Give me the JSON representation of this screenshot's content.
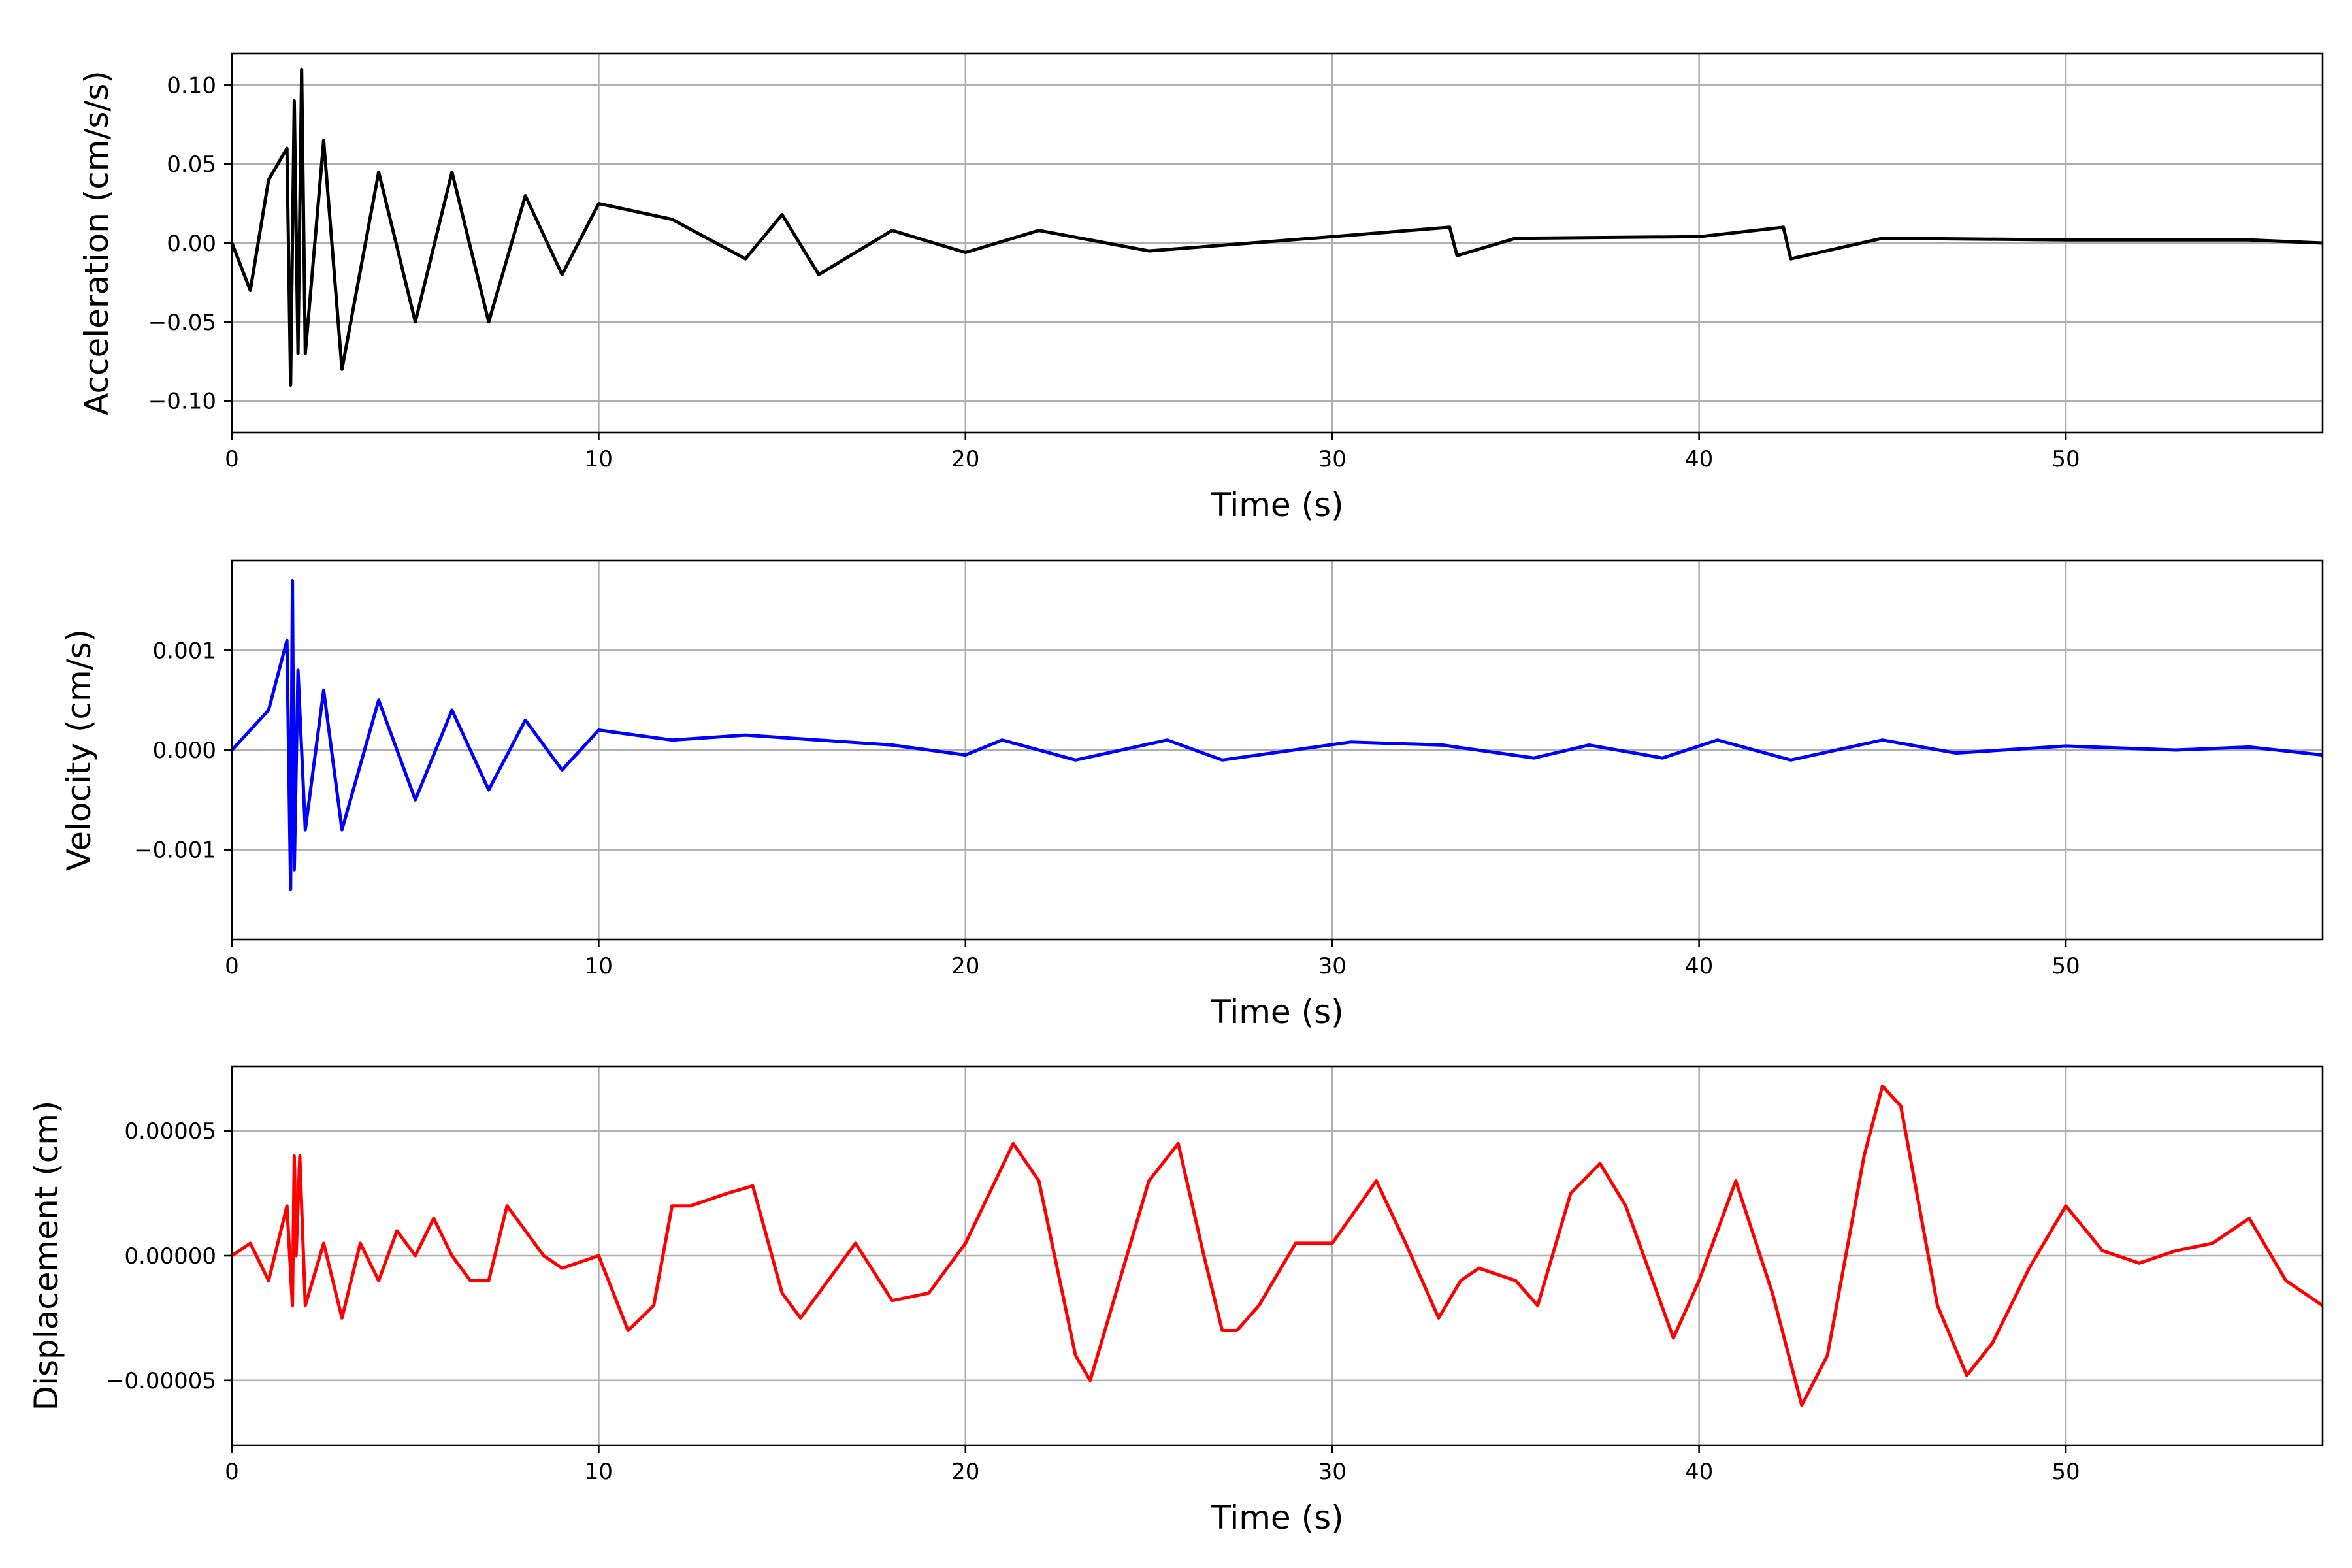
{
  "chart_data": [
    {
      "type": "line",
      "color": "#000000",
      "xlabel": "Time (s)",
      "ylabel": "Acceleration (cm/s/s)",
      "xlim": [
        0,
        57
      ],
      "ylim": [
        -0.12,
        0.12
      ],
      "grid": true,
      "x_ticks": [
        0,
        10,
        20,
        30,
        40,
        50
      ],
      "x_tick_labels": [
        "0",
        "10",
        "20",
        "30",
        "40",
        "50"
      ],
      "y_ticks": [
        -0.1,
        -0.05,
        0.0,
        0.05,
        0.1
      ],
      "y_tick_labels": [
        "−0.10",
        "−0.05",
        "0.00",
        "0.05",
        "0.10"
      ],
      "series": [
        {
          "x": [
            0,
            0.5,
            1.0,
            1.5,
            1.6,
            1.7,
            1.8,
            1.9,
            2.0,
            2.5,
            3.0,
            4.0,
            5.0,
            6.0,
            7.0,
            8.0,
            9.0,
            10.0,
            12.0,
            14.0,
            15.0,
            16.0,
            18.0,
            20.0,
            22.0,
            25.0,
            30.0,
            33.2,
            33.4,
            35.0,
            40.0,
            42.3,
            42.5,
            45.0,
            50.0,
            55.0,
            57.0
          ],
          "y": [
            0.0,
            -0.03,
            0.04,
            0.06,
            -0.09,
            0.09,
            -0.07,
            0.11,
            -0.07,
            0.065,
            -0.08,
            0.045,
            -0.05,
            0.045,
            -0.05,
            0.03,
            -0.02,
            0.025,
            0.015,
            -0.01,
            0.018,
            -0.02,
            0.008,
            -0.006,
            0.008,
            -0.005,
            0.004,
            0.01,
            -0.008,
            0.003,
            0.004,
            0.01,
            -0.01,
            0.003,
            0.002,
            0.002,
            0.0
          ]
        }
      ]
    },
    {
      "type": "line",
      "color": "#0000ff",
      "xlabel": "Time (s)",
      "ylabel": "Velocity (cm/s)",
      "xlim": [
        0,
        57
      ],
      "ylim": [
        -0.0019,
        0.0019
      ],
      "grid": true,
      "x_ticks": [
        0,
        10,
        20,
        30,
        40,
        50
      ],
      "x_tick_labels": [
        "0",
        "10",
        "20",
        "30",
        "40",
        "50"
      ],
      "y_ticks": [
        -0.001,
        0.0,
        0.001
      ],
      "y_tick_labels": [
        "−0.001",
        "0.000",
        "0.001"
      ],
      "series": [
        {
          "x": [
            0,
            1.0,
            1.5,
            1.6,
            1.65,
            1.7,
            1.8,
            2.0,
            2.5,
            3.0,
            4.0,
            5.0,
            6.0,
            7.0,
            8.0,
            9.0,
            10.0,
            12.0,
            14.0,
            16.0,
            18.0,
            20.0,
            21.0,
            22.0,
            23.0,
            25.5,
            27.0,
            30.5,
            33.0,
            35.5,
            37.0,
            39.0,
            40.5,
            42.5,
            45.0,
            47.0,
            50.0,
            53.0,
            55.0,
            57.0
          ],
          "y": [
            0.0,
            0.0004,
            0.0011,
            -0.0014,
            0.0017,
            -0.0012,
            0.0008,
            -0.0008,
            0.0006,
            -0.0008,
            0.0005,
            -0.0005,
            0.0004,
            -0.0004,
            0.0003,
            -0.0002,
            0.0002,
            0.0001,
            0.00015,
            0.0001,
            5e-05,
            -5e-05,
            0.0001,
            0.0,
            -0.0001,
            0.0001,
            -0.0001,
            8e-05,
            5e-05,
            -8e-05,
            5e-05,
            -8e-05,
            0.0001,
            -0.0001,
            0.0001,
            -3e-05,
            4e-05,
            0.0,
            3e-05,
            -5e-05
          ]
        }
      ]
    },
    {
      "type": "line",
      "color": "#ff0000",
      "xlabel": "Time (s)",
      "ylabel": "Displacement (cm)",
      "xlim": [
        0,
        57
      ],
      "ylim": [
        -7.6e-05,
        7.6e-05
      ],
      "grid": true,
      "x_ticks": [
        0,
        10,
        20,
        30,
        40,
        50
      ],
      "x_tick_labels": [
        "0",
        "10",
        "20",
        "30",
        "40",
        "50"
      ],
      "y_ticks": [
        -5e-05,
        0.0,
        5e-05
      ],
      "y_tick_labels": [
        "−0.00005",
        "0.00000",
        "0.00005"
      ],
      "series": [
        {
          "x": [
            0,
            0.5,
            1.0,
            1.5,
            1.65,
            1.7,
            1.75,
            1.85,
            2.0,
            2.5,
            3.0,
            3.5,
            4.0,
            4.5,
            5.0,
            5.5,
            6.0,
            6.5,
            7.0,
            7.5,
            8.0,
            8.5,
            9.0,
            10.0,
            10.8,
            11.5,
            12.0,
            12.5,
            13.5,
            14.2,
            15.0,
            15.5,
            16.5,
            17.0,
            18.0,
            19.0,
            20.0,
            21.3,
            22.0,
            23.0,
            23.4,
            24.0,
            25.0,
            25.8,
            26.5,
            27.0,
            27.4,
            28.0,
            29.0,
            30.0,
            31.2,
            32.0,
            32.9,
            33.5,
            34.0,
            35.0,
            35.6,
            36.5,
            37.3,
            38.0,
            39.3,
            40.0,
            41.0,
            42.0,
            42.8,
            43.5,
            44.5,
            45.0,
            45.5,
            46.5,
            47.3,
            48.0,
            49.0,
            50.0,
            51.0,
            52.0,
            53.0,
            54.0,
            55.0,
            56.0,
            57.0
          ],
          "y": [
            0.0,
            5e-06,
            -1e-05,
            2e-05,
            -2e-05,
            4e-05,
            0.0,
            4e-05,
            -2e-05,
            5e-06,
            -2.5e-05,
            5e-06,
            -1e-05,
            1e-05,
            0.0,
            1.5e-05,
            0.0,
            -1e-05,
            -1e-05,
            2e-05,
            1e-05,
            0.0,
            -5e-06,
            0.0,
            -3e-05,
            -2e-05,
            2e-05,
            2e-05,
            2.5e-05,
            2.8e-05,
            -1.5e-05,
            -2.5e-05,
            -5e-06,
            5e-06,
            -1.8e-05,
            -1.5e-05,
            5e-06,
            4.5e-05,
            3e-05,
            -4e-05,
            -5e-05,
            -2e-05,
            3e-05,
            4.5e-05,
            0.0,
            -3e-05,
            -3e-05,
            -2e-05,
            5e-06,
            5e-06,
            3e-05,
            5e-06,
            -2.5e-05,
            -1e-05,
            -5e-06,
            -1e-05,
            -2e-05,
            2.5e-05,
            3.7e-05,
            2e-05,
            -3.3e-05,
            -1e-05,
            3e-05,
            -1.5e-05,
            -6e-05,
            -4e-05,
            4e-05,
            6.8e-05,
            6e-05,
            -2e-05,
            -4.8e-05,
            -3.5e-05,
            -5e-06,
            2e-05,
            2e-06,
            -3e-06,
            2e-06,
            5e-06,
            1.5e-05,
            -1e-05,
            -2e-05
          ]
        }
      ]
    }
  ]
}
